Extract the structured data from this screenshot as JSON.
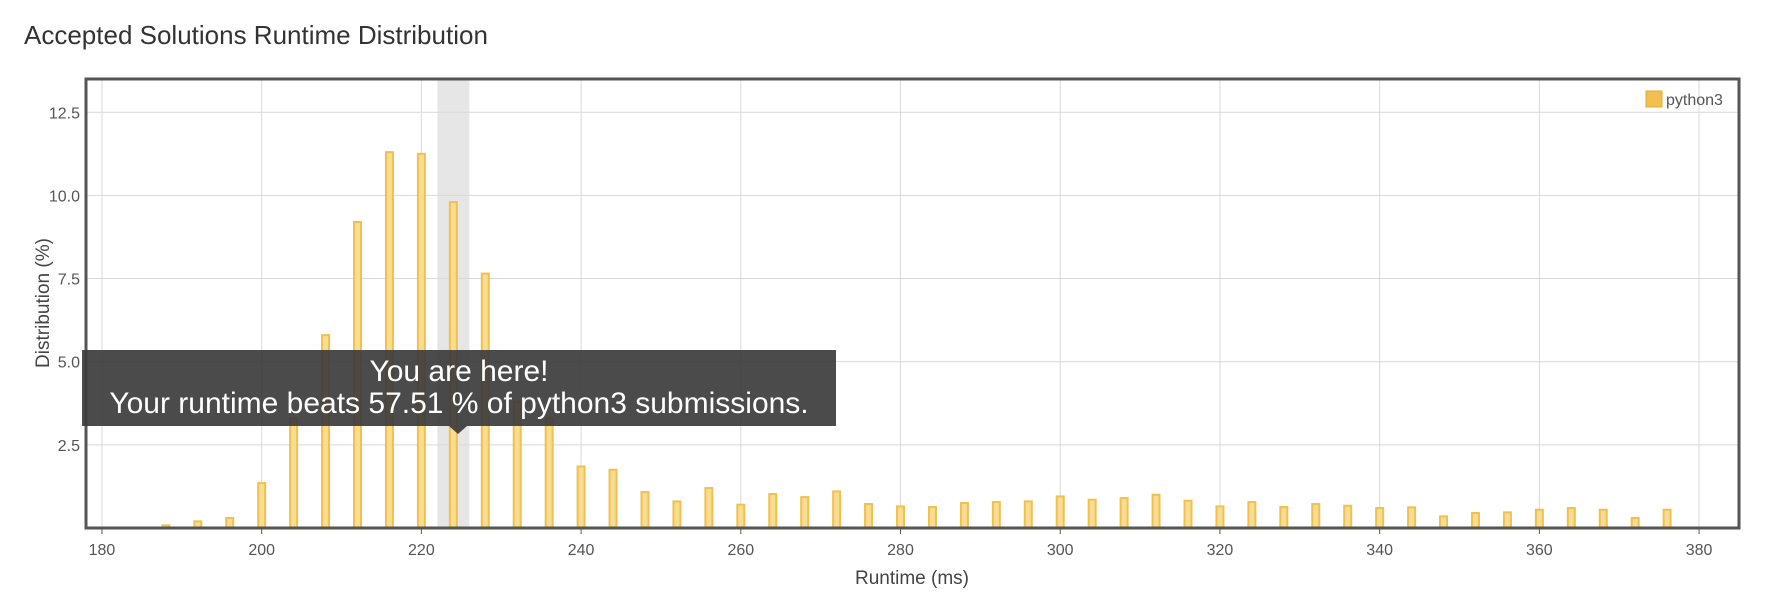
{
  "title": "Accepted Solutions Runtime Distribution",
  "chart_data": {
    "type": "bar",
    "title": "Accepted Solutions Runtime Distribution",
    "xlabel": "Runtime (ms)",
    "ylabel": "Distribution (%)",
    "xlim": [
      178,
      385
    ],
    "ylim": [
      0,
      13.5
    ],
    "xticks": [
      180,
      200,
      220,
      240,
      260,
      280,
      300,
      320,
      340,
      360,
      380
    ],
    "yticks": [
      2.5,
      5.0,
      7.5,
      10.0,
      12.5
    ],
    "grid": true,
    "legend_position": "top-right",
    "series": [
      {
        "name": "python3",
        "color": "#f0c050",
        "x": [
          188,
          192,
          196,
          200,
          204,
          208,
          212,
          216,
          220,
          224,
          228,
          232,
          236,
          240,
          244,
          248,
          252,
          256,
          260,
          264,
          268,
          272,
          276,
          280,
          284,
          288,
          292,
          296,
          300,
          304,
          308,
          312,
          316,
          320,
          324,
          328,
          332,
          336,
          340,
          344,
          348,
          352,
          356,
          360,
          364,
          368,
          372,
          376
        ],
        "values": [
          0.08,
          0.2,
          0.3,
          1.35,
          3.3,
          5.8,
          9.2,
          11.3,
          11.25,
          9.8,
          7.65,
          3.8,
          3.3,
          1.85,
          1.75,
          1.08,
          0.8,
          1.2,
          0.7,
          1.02,
          0.93,
          1.1,
          0.72,
          0.65,
          0.63,
          0.75,
          0.78,
          0.8,
          0.95,
          0.85,
          0.9,
          1.0,
          0.82,
          0.65,
          0.78,
          0.63,
          0.72,
          0.67,
          0.6,
          0.62,
          0.35,
          0.45,
          0.47,
          0.55,
          0.6,
          0.55,
          0.3,
          0.55
        ]
      }
    ],
    "highlight": {
      "x": 224,
      "band": [
        222,
        226
      ],
      "band_color": "#e6e6e6"
    },
    "tooltip": {
      "line1": "You are here!",
      "line2": "Your runtime beats 57.51 % of python3 submissions."
    }
  }
}
